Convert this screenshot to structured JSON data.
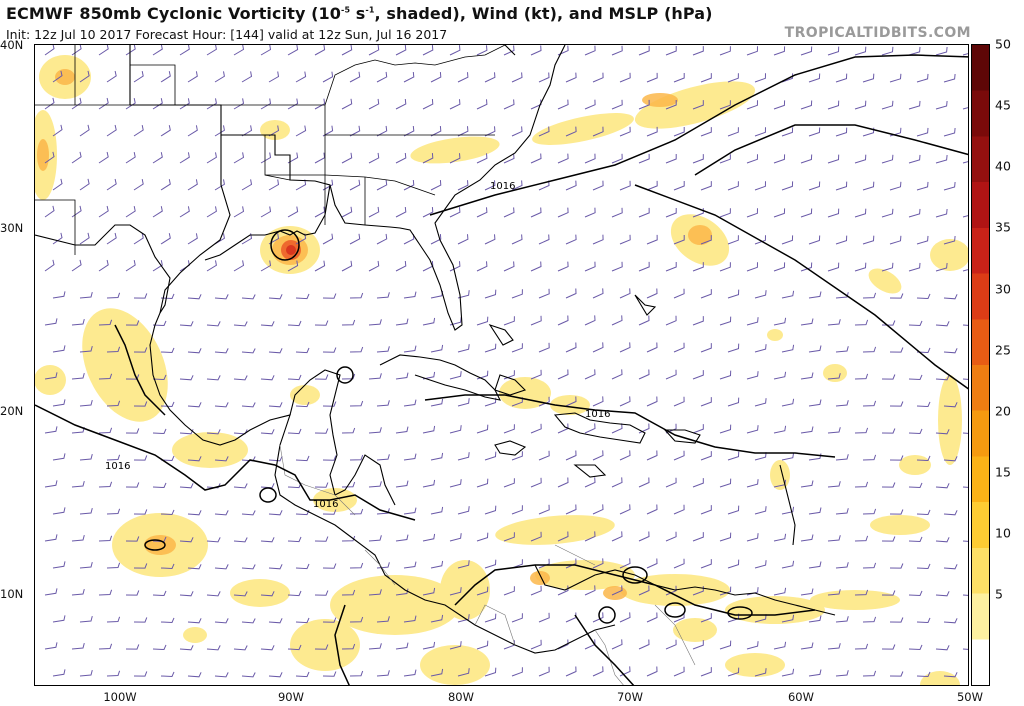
{
  "header": {
    "title_prefix": "ECMWF 850mb Cyclonic Vorticity (10",
    "title_exp": "-5",
    "title_unit": " s",
    "title_unit_exp": "-1",
    "title_suffix": ", shaded), Wind (kt), and MSLP (hPa)",
    "subtitle": "Init: 12z Jul 10 2017   Forecast Hour: [144]   valid at 12z Sun, Jul 16 2017",
    "brand": "TROPICALTIDBITS.COM"
  },
  "map": {
    "lat_labels": [
      "40N",
      "30N",
      "20N",
      "10N"
    ],
    "lon_labels": [
      "100W",
      "90W",
      "80W",
      "70W",
      "60W",
      "50W"
    ],
    "isobar_labels": [
      "1016",
      "1016",
      "1016",
      "1016"
    ],
    "land_color": "#ffffff",
    "coast_color": "#000000",
    "barb_color": "#6a5aa8",
    "isobar_color": "#000000"
  },
  "colorbar": {
    "ticks": [
      "50",
      "45",
      "40",
      "35",
      "30",
      "25",
      "20",
      "15",
      "10",
      "5"
    ],
    "colors": [
      "#ffffff",
      "#fdf0a0",
      "#fde066",
      "#fdcc33",
      "#fbb217",
      "#f59a10",
      "#ef7d12",
      "#e85c14",
      "#dc3c16",
      "#c92218",
      "#b01414",
      "#94100f",
      "#7a0a0a",
      "#5e0606"
    ]
  }
}
